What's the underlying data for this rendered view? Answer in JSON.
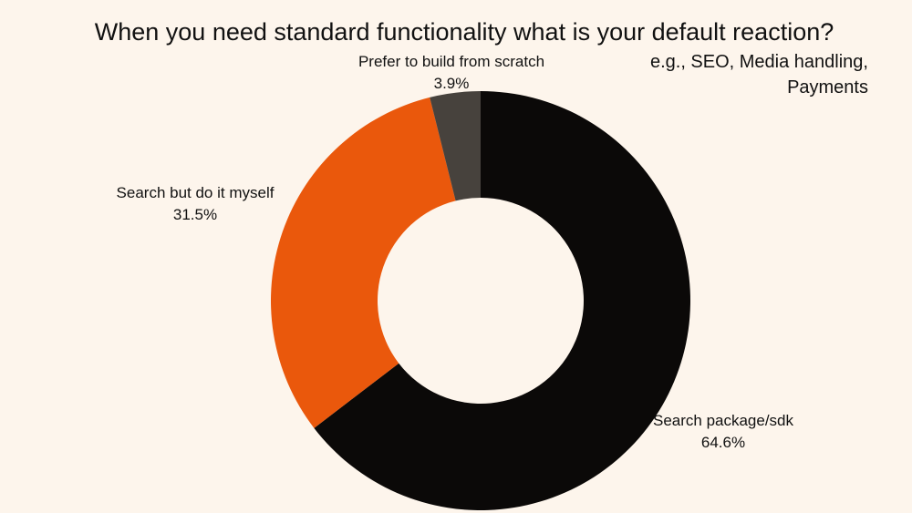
{
  "title": "When you need standard functionality what is your default reaction?",
  "subtitle": "e.g., SEO, Media handling, Payments",
  "chart_data": {
    "type": "pie",
    "variant": "donut",
    "slices": [
      {
        "label": "Search package/sdk",
        "value": 64.6,
        "value_label": "64.6%",
        "color": "#0b0908"
      },
      {
        "label": "Search but do it myself",
        "value": 31.5,
        "value_label": "31.5%",
        "color": "#ea580c"
      },
      {
        "label": "Prefer to build from scratch",
        "value": 3.9,
        "value_label": "3.9%",
        "color": "#47423d"
      }
    ],
    "start": "top",
    "direction": "clockwise",
    "legend": "none"
  }
}
